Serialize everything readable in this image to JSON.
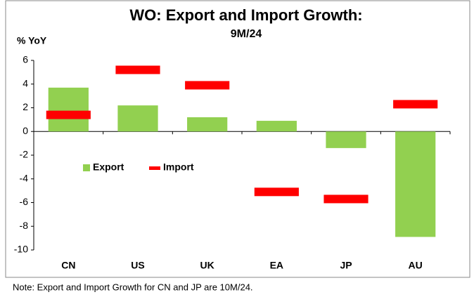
{
  "chart_data": {
    "type": "bar",
    "title": "WO: Export and Import Growth:",
    "subtitle": "9M/24",
    "y_label": "% YoY",
    "note": "Note: Export and Import Growth for CN and JP are 10M/24.",
    "categories": [
      "CN",
      "US",
      "UK",
      "EA",
      "JP",
      "AU"
    ],
    "series": [
      {
        "name": "Export",
        "color": "#92d050",
        "mark": "bar",
        "values": [
          3.7,
          2.2,
          1.2,
          0.9,
          -1.4,
          -8.9
        ]
      },
      {
        "name": "Import",
        "color": "#ff0000",
        "mark": "dash",
        "values": [
          1.4,
          5.2,
          3.9,
          -5.1,
          -5.7,
          2.3
        ]
      }
    ],
    "ylim": [
      -10,
      6
    ],
    "yticks": [
      -10,
      -8,
      -6,
      -4,
      -2,
      0,
      2,
      4,
      6
    ],
    "grid": false,
    "legend": "center-left"
  }
}
